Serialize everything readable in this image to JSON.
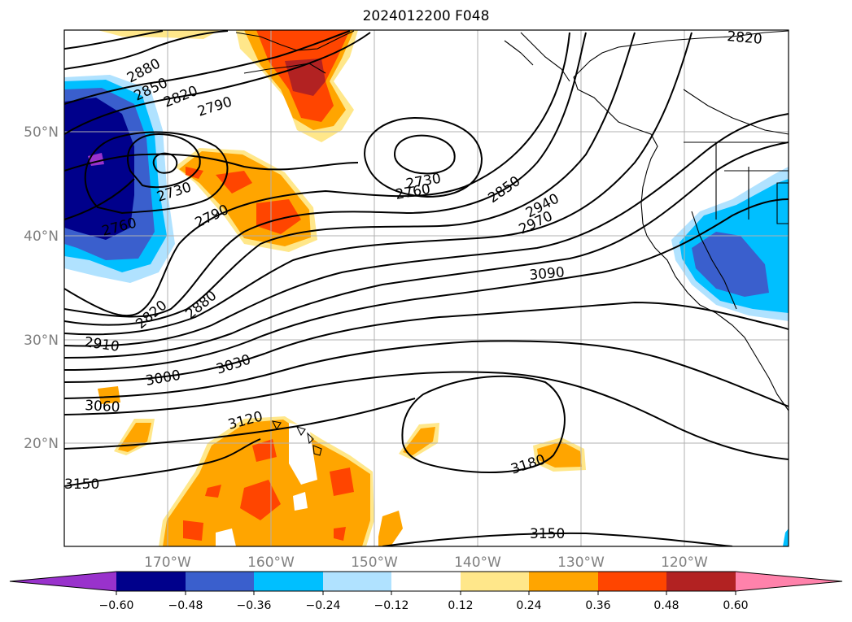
{
  "title": "2024012200 F048",
  "map": {
    "lat_labels": [
      "50°N",
      "40°N",
      "30°N",
      "20°N"
    ],
    "lon_labels": [
      "170°W",
      "160°W",
      "150°W",
      "140°W",
      "130°W",
      "120°W"
    ],
    "contour_labels": [
      "2820",
      "2880",
      "2850",
      "2820",
      "2790",
      "2730",
      "2760",
      "2790",
      "2730",
      "2760",
      "2850",
      "2940",
      "2970",
      "3090",
      "2820",
      "2880",
      "2910",
      "3030",
      "3000",
      "3060",
      "3120",
      "3180",
      "3150",
      "3150"
    ]
  },
  "colorbar": {
    "colors": [
      "#9932cc",
      "#00008b",
      "#3a5fcd",
      "#00bfff",
      "#b0e2ff",
      "#ffffff",
      "#ffe78a",
      "#ffa500",
      "#ff4500",
      "#b22222",
      "#ff82ab"
    ],
    "ticks": [
      "−0.60",
      "−0.48",
      "−0.36",
      "−0.24",
      "−0.12",
      "0.12",
      "0.24",
      "0.36",
      "0.48",
      "0.60"
    ]
  }
}
